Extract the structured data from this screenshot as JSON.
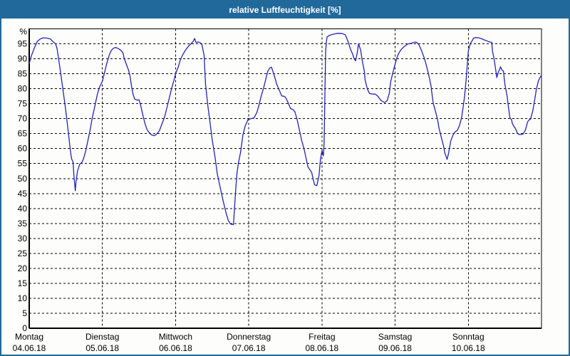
{
  "window": {
    "title": "relative Luftfeuchtigkeit [%]"
  },
  "colors": {
    "titlebar_bg": "#20699a",
    "window_border": "#20699a",
    "titlebar_text": "#ffffff",
    "background": "#fdfefb",
    "line": "#2222c0",
    "grid": "#000000",
    "axis": "#000000",
    "text": "#000000"
  },
  "chart_data": {
    "type": "line",
    "title": "relative Luftfeuchtigkeit [%]",
    "ylabel": "%",
    "ylim": [
      0,
      100
    ],
    "ytick_step": 5,
    "ytick_labels": [
      0,
      5,
      10,
      15,
      20,
      25,
      30,
      35,
      40,
      45,
      50,
      55,
      60,
      65,
      70,
      75,
      80,
      85,
      90,
      95
    ],
    "grid": "dashed",
    "legend": "none",
    "x_axis": {
      "range_days": [
        0,
        7
      ],
      "days": [
        {
          "label": "Montag",
          "date": "04.06.18"
        },
        {
          "label": "Dienstag",
          "date": "05.06.18"
        },
        {
          "label": "Mittwoch",
          "date": "06.06.18"
        },
        {
          "label": "Donnerstag",
          "date": "07.06.18"
        },
        {
          "label": "Freitag",
          "date": "08.06.18"
        },
        {
          "label": "Samstag",
          "date": "09.06.18"
        },
        {
          "label": "Sonntag",
          "date": "10.06.18"
        }
      ]
    },
    "series": [
      {
        "name": "relative Luftfeuchtigkeit",
        "unit": "%",
        "color": "#2222c0",
        "points": [
          [
            0.0,
            88.4
          ],
          [
            0.03,
            91.0
          ],
          [
            0.07,
            93.6
          ],
          [
            0.11,
            95.8
          ],
          [
            0.15,
            96.6
          ],
          [
            0.19,
            97.0
          ],
          [
            0.24,
            96.9
          ],
          [
            0.29,
            96.6
          ],
          [
            0.33,
            95.6
          ],
          [
            0.36,
            95.0
          ],
          [
            0.38,
            93.5
          ],
          [
            0.42,
            87.0
          ],
          [
            0.46,
            80.0
          ],
          [
            0.5,
            72.5
          ],
          [
            0.53,
            66.5
          ],
          [
            0.55,
            62.0
          ],
          [
            0.57,
            58.0
          ],
          [
            0.58,
            56.5
          ],
          [
            0.6,
            55.5
          ],
          [
            0.61,
            51.0
          ],
          [
            0.63,
            45.9
          ],
          [
            0.64,
            49.0
          ],
          [
            0.66,
            52.5
          ],
          [
            0.69,
            54.8
          ],
          [
            0.72,
            55.4
          ],
          [
            0.74,
            56.5
          ],
          [
            0.77,
            59.0
          ],
          [
            0.8,
            62.5
          ],
          [
            0.83,
            66.0
          ],
          [
            0.86,
            70.0
          ],
          [
            0.9,
            74.5
          ],
          [
            0.93,
            78.0
          ],
          [
            0.96,
            80.5
          ],
          [
            1.0,
            82.5
          ],
          [
            1.03,
            85.5
          ],
          [
            1.06,
            88.5
          ],
          [
            1.09,
            91.0
          ],
          [
            1.12,
            92.7
          ],
          [
            1.15,
            93.5
          ],
          [
            1.18,
            93.8
          ],
          [
            1.22,
            93.4
          ],
          [
            1.25,
            92.9
          ],
          [
            1.28,
            92.0
          ],
          [
            1.3,
            90.0
          ],
          [
            1.33,
            88.0
          ],
          [
            1.36,
            86.0
          ],
          [
            1.38,
            84.0
          ],
          [
            1.4,
            80.5
          ],
          [
            1.42,
            78.0
          ],
          [
            1.44,
            76.6
          ],
          [
            1.47,
            76.2
          ],
          [
            1.5,
            76.3
          ],
          [
            1.52,
            74.8
          ],
          [
            1.55,
            71.5
          ],
          [
            1.58,
            68.5
          ],
          [
            1.61,
            66.3
          ],
          [
            1.64,
            65.3
          ],
          [
            1.67,
            64.6
          ],
          [
            1.71,
            64.3
          ],
          [
            1.74,
            64.8
          ],
          [
            1.78,
            66.0
          ],
          [
            1.81,
            68.0
          ],
          [
            1.85,
            70.5
          ],
          [
            1.88,
            73.5
          ],
          [
            1.92,
            77.5
          ],
          [
            1.95,
            80.5
          ],
          [
            1.98,
            83.0
          ],
          [
            2.0,
            85.0
          ],
          [
            2.04,
            87.5
          ],
          [
            2.06,
            89.3
          ],
          [
            2.09,
            91.0
          ],
          [
            2.12,
            92.3
          ],
          [
            2.15,
            93.4
          ],
          [
            2.18,
            94.3
          ],
          [
            2.21,
            95.0
          ],
          [
            2.24,
            95.8
          ],
          [
            2.26,
            96.8
          ],
          [
            2.28,
            95.4
          ],
          [
            2.31,
            95.6
          ],
          [
            2.34,
            95.3
          ],
          [
            2.36,
            94.8
          ],
          [
            2.39,
            91.0
          ],
          [
            2.4,
            86.0
          ],
          [
            2.41,
            81.5
          ],
          [
            2.44,
            74.5
          ],
          [
            2.47,
            68.9
          ],
          [
            2.5,
            63.0
          ],
          [
            2.54,
            57.0
          ],
          [
            2.57,
            51.5
          ],
          [
            2.61,
            47.0
          ],
          [
            2.65,
            42.5
          ],
          [
            2.69,
            38.5
          ],
          [
            2.72,
            36.0
          ],
          [
            2.75,
            34.8
          ],
          [
            2.79,
            34.6
          ],
          [
            2.8,
            38.0
          ],
          [
            2.82,
            46.0
          ],
          [
            2.84,
            52.0
          ],
          [
            2.86,
            55.4
          ],
          [
            2.89,
            59.0
          ],
          [
            2.92,
            64.5
          ],
          [
            2.95,
            67.5
          ],
          [
            2.99,
            69.7
          ],
          [
            3.03,
            70.0
          ],
          [
            3.07,
            70.2
          ],
          [
            3.11,
            72.0
          ],
          [
            3.14,
            74.5
          ],
          [
            3.17,
            77.6
          ],
          [
            3.2,
            80.0
          ],
          [
            3.23,
            83.0
          ],
          [
            3.26,
            85.8
          ],
          [
            3.29,
            87.0
          ],
          [
            3.31,
            87.2
          ],
          [
            3.33,
            85.8
          ],
          [
            3.36,
            83.5
          ],
          [
            3.38,
            81.6
          ],
          [
            3.42,
            79.3
          ],
          [
            3.45,
            77.6
          ],
          [
            3.49,
            77.4
          ],
          [
            3.51,
            76.8
          ],
          [
            3.54,
            75.2
          ],
          [
            3.57,
            73.4
          ],
          [
            3.6,
            73.1
          ],
          [
            3.63,
            72.3
          ],
          [
            3.66,
            69.8
          ],
          [
            3.69,
            66.5
          ],
          [
            3.72,
            63.0
          ],
          [
            3.76,
            59.4
          ],
          [
            3.79,
            56.0
          ],
          [
            3.81,
            53.8
          ],
          [
            3.84,
            52.8
          ],
          [
            3.86,
            52.0
          ],
          [
            3.88,
            49.8
          ],
          [
            3.9,
            47.9
          ],
          [
            3.93,
            47.6
          ],
          [
            3.96,
            51.0
          ],
          [
            3.98,
            56.5
          ],
          [
            4.0,
            59.3
          ],
          [
            4.02,
            57.6
          ],
          [
            4.03,
            62.0
          ],
          [
            4.04,
            78.0
          ],
          [
            4.05,
            92.0
          ],
          [
            4.06,
            95.5
          ],
          [
            4.07,
            97.3
          ],
          [
            4.1,
            97.8
          ],
          [
            4.14,
            98.1
          ],
          [
            4.19,
            98.4
          ],
          [
            4.23,
            98.5
          ],
          [
            4.28,
            98.4
          ],
          [
            4.32,
            98.0
          ],
          [
            4.34,
            96.8
          ],
          [
            4.36,
            95.5
          ],
          [
            4.39,
            93.2
          ],
          [
            4.42,
            91.5
          ],
          [
            4.44,
            90.0
          ],
          [
            4.46,
            89.3
          ],
          [
            4.48,
            91.8
          ],
          [
            4.5,
            95.0
          ],
          [
            4.53,
            92.8
          ],
          [
            4.55,
            89.5
          ],
          [
            4.58,
            85.8
          ],
          [
            4.59,
            82.8
          ],
          [
            4.62,
            80.0
          ],
          [
            4.65,
            78.4
          ],
          [
            4.69,
            78.2
          ],
          [
            4.73,
            78.2
          ],
          [
            4.76,
            77.6
          ],
          [
            4.8,
            76.3
          ],
          [
            4.83,
            75.7
          ],
          [
            4.86,
            75.4
          ],
          [
            4.89,
            76.0
          ],
          [
            4.92,
            78.5
          ],
          [
            4.94,
            82.4
          ],
          [
            4.97,
            85.5
          ],
          [
            5.0,
            88.3
          ],
          [
            5.03,
            90.8
          ],
          [
            5.06,
            92.3
          ],
          [
            5.09,
            93.3
          ],
          [
            5.13,
            94.2
          ],
          [
            5.17,
            94.9
          ],
          [
            5.21,
            95.1
          ],
          [
            5.25,
            95.4
          ],
          [
            5.28,
            95.6
          ],
          [
            5.31,
            95.2
          ],
          [
            5.33,
            94.4
          ],
          [
            5.36,
            92.8
          ],
          [
            5.4,
            90.1
          ],
          [
            5.43,
            87.5
          ],
          [
            5.46,
            84.5
          ],
          [
            5.49,
            81.0
          ],
          [
            5.5,
            79.0
          ],
          [
            5.52,
            75.2
          ],
          [
            5.55,
            72.5
          ],
          [
            5.58,
            69.7
          ],
          [
            5.6,
            66.8
          ],
          [
            5.63,
            63.8
          ],
          [
            5.66,
            61.0
          ],
          [
            5.68,
            58.5
          ],
          [
            5.71,
            56.4
          ],
          [
            5.73,
            58.5
          ],
          [
            5.76,
            62.5
          ],
          [
            5.79,
            64.5
          ],
          [
            5.82,
            65.6
          ],
          [
            5.85,
            66.1
          ],
          [
            5.88,
            67.8
          ],
          [
            5.91,
            70.5
          ],
          [
            5.93,
            74.0
          ],
          [
            5.95,
            77.6
          ],
          [
            5.97,
            83.0
          ],
          [
            5.99,
            89.5
          ],
          [
            6.0,
            92.5
          ],
          [
            6.02,
            94.5
          ],
          [
            6.04,
            95.6
          ],
          [
            6.06,
            96.3
          ],
          [
            6.07,
            96.9
          ],
          [
            6.1,
            97.1
          ],
          [
            6.14,
            97.0
          ],
          [
            6.18,
            96.7
          ],
          [
            6.22,
            96.3
          ],
          [
            6.26,
            95.9
          ],
          [
            6.29,
            95.6
          ],
          [
            6.32,
            95.5
          ],
          [
            6.33,
            92.5
          ],
          [
            6.35,
            90.3
          ],
          [
            6.37,
            87.0
          ],
          [
            6.39,
            83.7
          ],
          [
            6.41,
            85.5
          ],
          [
            6.44,
            87.3
          ],
          [
            6.46,
            86.2
          ],
          [
            6.48,
            85.9
          ],
          [
            6.5,
            81.5
          ],
          [
            6.53,
            77.6
          ],
          [
            6.55,
            73.5
          ],
          [
            6.57,
            70.1
          ],
          [
            6.59,
            69.8
          ],
          [
            6.6,
            68.5
          ],
          [
            6.62,
            67.5
          ],
          [
            6.64,
            66.9
          ],
          [
            6.67,
            65.2
          ],
          [
            6.69,
            64.7
          ],
          [
            6.72,
            64.7
          ],
          [
            6.75,
            64.9
          ],
          [
            6.78,
            66.2
          ],
          [
            6.81,
            68.9
          ],
          [
            6.83,
            69.6
          ],
          [
            6.85,
            69.8
          ],
          [
            6.88,
            72.5
          ],
          [
            6.91,
            76.8
          ],
          [
            6.93,
            79.8
          ],
          [
            6.96,
            82.8
          ],
          [
            6.98,
            83.7
          ],
          [
            6.99,
            84.2
          ]
        ]
      }
    ]
  }
}
